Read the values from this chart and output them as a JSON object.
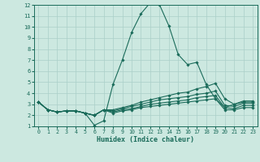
{
  "xlabel": "Humidex (Indice chaleur)",
  "ylabel": "",
  "xlim": [
    -0.5,
    23.5
  ],
  "ylim": [
    1,
    12
  ],
  "yticks": [
    1,
    2,
    3,
    4,
    5,
    6,
    7,
    8,
    9,
    10,
    11,
    12
  ],
  "xticks": [
    0,
    1,
    2,
    3,
    4,
    5,
    6,
    7,
    8,
    9,
    10,
    11,
    12,
    13,
    14,
    15,
    16,
    17,
    18,
    19,
    20,
    21,
    22,
    23
  ],
  "bg_color": "#cce8e0",
  "grid_color": "#aacfc8",
  "line_color": "#1a6b5a",
  "lines": [
    [
      3.2,
      2.5,
      2.3,
      2.4,
      2.4,
      2.2,
      1.1,
      1.5,
      4.8,
      7.0,
      9.5,
      11.2,
      12.2,
      12.0,
      10.1,
      7.5,
      6.6,
      6.8,
      4.8,
      3.5,
      2.7,
      3.0,
      3.2,
      3.2
    ],
    [
      3.2,
      2.5,
      2.3,
      2.4,
      2.4,
      2.2,
      2.0,
      2.5,
      2.5,
      2.7,
      2.9,
      3.2,
      3.4,
      3.6,
      3.8,
      4.0,
      4.1,
      4.4,
      4.6,
      4.9,
      3.5,
      3.0,
      3.3,
      3.3
    ],
    [
      3.2,
      2.5,
      2.3,
      2.4,
      2.4,
      2.2,
      2.0,
      2.5,
      2.4,
      2.6,
      2.8,
      3.0,
      3.2,
      3.4,
      3.5,
      3.6,
      3.7,
      3.9,
      4.0,
      4.2,
      2.9,
      2.8,
      3.1,
      3.1
    ],
    [
      3.2,
      2.5,
      2.3,
      2.4,
      2.4,
      2.2,
      2.0,
      2.5,
      2.3,
      2.5,
      2.6,
      2.8,
      3.0,
      3.1,
      3.2,
      3.3,
      3.4,
      3.6,
      3.7,
      3.8,
      2.7,
      2.6,
      2.9,
      2.9
    ],
    [
      3.2,
      2.5,
      2.3,
      2.4,
      2.4,
      2.2,
      2.0,
      2.5,
      2.2,
      2.4,
      2.5,
      2.7,
      2.8,
      2.9,
      3.0,
      3.1,
      3.2,
      3.3,
      3.4,
      3.5,
      2.5,
      2.5,
      2.7,
      2.7
    ]
  ]
}
